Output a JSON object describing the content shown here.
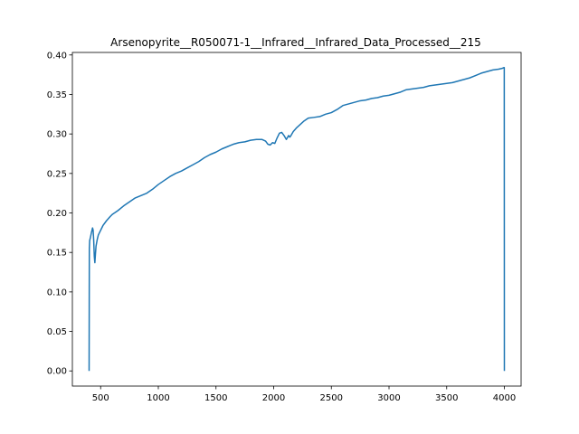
{
  "chart_data": {
    "type": "line",
    "title": "Arsenopyrite__R050071-1__Infrared__Infrared_Data_Processed__215",
    "xlabel": "",
    "ylabel": "",
    "xlim": [
      255,
      4145
    ],
    "ylim": [
      -0.0192,
      0.4032
    ],
    "xticks": [
      500,
      1000,
      1500,
      2000,
      2500,
      3000,
      3500,
      4000
    ],
    "xtick_labels": [
      "500",
      "1000",
      "1500",
      "2000",
      "2500",
      "3000",
      "3500",
      "4000"
    ],
    "yticks": [
      0.0,
      0.05,
      0.1,
      0.15,
      0.2,
      0.25,
      0.3,
      0.35,
      0.4
    ],
    "ytick_labels": [
      "0.00",
      "0.05",
      "0.10",
      "0.15",
      "0.20",
      "0.25",
      "0.30",
      "0.35",
      "0.40"
    ],
    "grid": false,
    "legend": "none",
    "series": [
      {
        "color": "#1f77b4",
        "x": [
          400,
          401,
          402,
          405,
          410,
          420,
          430,
          435,
          440,
          445,
          450,
          455,
          460,
          470,
          480,
          500,
          520,
          550,
          580,
          600,
          650,
          700,
          750,
          800,
          850,
          900,
          950,
          1000,
          1050,
          1100,
          1150,
          1200,
          1250,
          1300,
          1350,
          1400,
          1450,
          1500,
          1550,
          1600,
          1650,
          1700,
          1750,
          1800,
          1850,
          1900,
          1930,
          1950,
          1970,
          1990,
          2010,
          2030,
          2050,
          2070,
          2090,
          2110,
          2130,
          2140,
          2150,
          2170,
          2200,
          2230,
          2260,
          2280,
          2300,
          2350,
          2400,
          2450,
          2500,
          2550,
          2600,
          2650,
          2700,
          2750,
          2800,
          2850,
          2900,
          2950,
          3000,
          3050,
          3100,
          3150,
          3200,
          3250,
          3300,
          3350,
          3400,
          3450,
          3500,
          3550,
          3600,
          3650,
          3700,
          3750,
          3800,
          3850,
          3900,
          3950,
          3980,
          3995,
          3999,
          4000
        ],
        "y": [
          0.0,
          0.08,
          0.155,
          0.165,
          0.168,
          0.175,
          0.181,
          0.178,
          0.165,
          0.145,
          0.137,
          0.148,
          0.158,
          0.166,
          0.172,
          0.178,
          0.184,
          0.19,
          0.195,
          0.198,
          0.203,
          0.209,
          0.214,
          0.219,
          0.222,
          0.225,
          0.23,
          0.236,
          0.241,
          0.246,
          0.25,
          0.253,
          0.257,
          0.261,
          0.265,
          0.27,
          0.274,
          0.277,
          0.281,
          0.284,
          0.287,
          0.289,
          0.29,
          0.292,
          0.293,
          0.293,
          0.291,
          0.287,
          0.286,
          0.289,
          0.288,
          0.295,
          0.301,
          0.302,
          0.298,
          0.293,
          0.298,
          0.296,
          0.298,
          0.303,
          0.308,
          0.312,
          0.316,
          0.318,
          0.32,
          0.321,
          0.322,
          0.325,
          0.327,
          0.331,
          0.336,
          0.338,
          0.34,
          0.342,
          0.343,
          0.345,
          0.346,
          0.348,
          0.349,
          0.351,
          0.353,
          0.356,
          0.357,
          0.358,
          0.359,
          0.361,
          0.362,
          0.363,
          0.364,
          0.365,
          0.367,
          0.369,
          0.371,
          0.374,
          0.377,
          0.379,
          0.381,
          0.382,
          0.383,
          0.384,
          0.384,
          0.0
        ]
      }
    ]
  }
}
